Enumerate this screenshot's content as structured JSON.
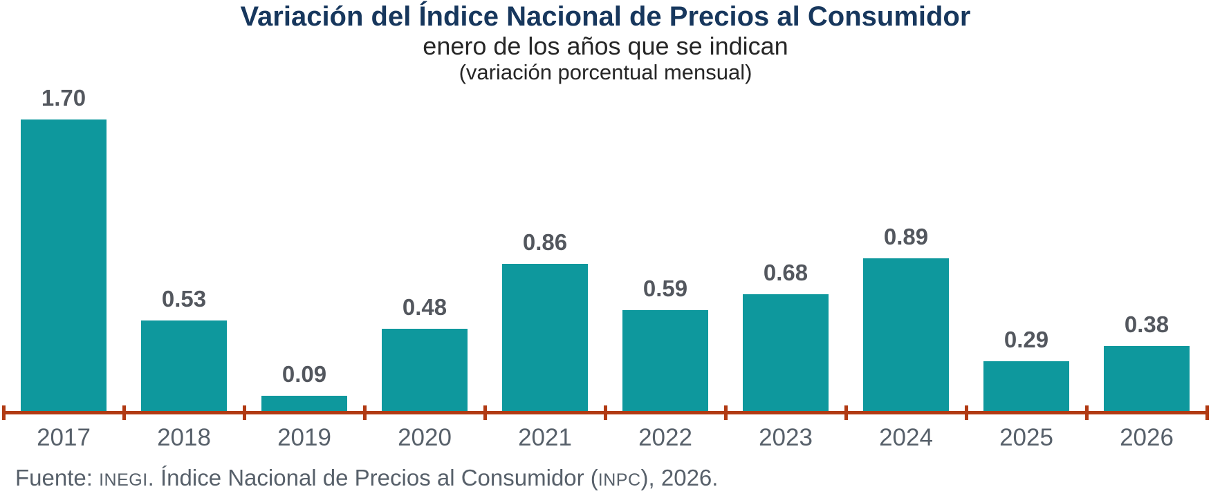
{
  "header": {
    "title": "Variación del Índice Nacional de Precios al Consumidor",
    "subtitle": "enero de los años que se indican",
    "note": "(variación porcentual mensual)"
  },
  "chart_data": {
    "type": "bar",
    "title": "Variación del Índice Nacional de Precios al Consumidor",
    "subtitle": "enero de los años que se indican",
    "note": "(variación porcentual mensual)",
    "categories": [
      "2017",
      "2018",
      "2019",
      "2020",
      "2021",
      "2022",
      "2023",
      "2024",
      "2025",
      "2026"
    ],
    "values": [
      1.7,
      0.53,
      0.09,
      0.48,
      0.86,
      0.59,
      0.68,
      0.89,
      0.29,
      0.38
    ],
    "value_labels": [
      "1.70",
      "0.53",
      "0.09",
      "0.48",
      "0.86",
      "0.59",
      "0.68",
      "0.89",
      "0.29",
      "0.38"
    ],
    "xlabel": "",
    "ylabel": "",
    "ylim": [
      0,
      1.8
    ],
    "grid": false,
    "legend_position": "none",
    "bar_color": "#0e989d",
    "axis_color": "#b13a13"
  },
  "footer": {
    "parts": [
      {
        "text": "Fuente: ",
        "small": false
      },
      {
        "text": "INEGI",
        "small": true
      },
      {
        "text": ". Índice Nacional de Precios al Consumidor (",
        "small": false
      },
      {
        "text": "INPC",
        "small": true
      },
      {
        "text": "), 2026.",
        "small": false
      }
    ]
  },
  "colors": {
    "bar": "#0e989d",
    "axis": "#b13a13",
    "title": "#17375d",
    "subtitle_text": "#262626",
    "value_label": "#53575e",
    "tick_label": "#57606a",
    "footer_text": "#57606a"
  }
}
